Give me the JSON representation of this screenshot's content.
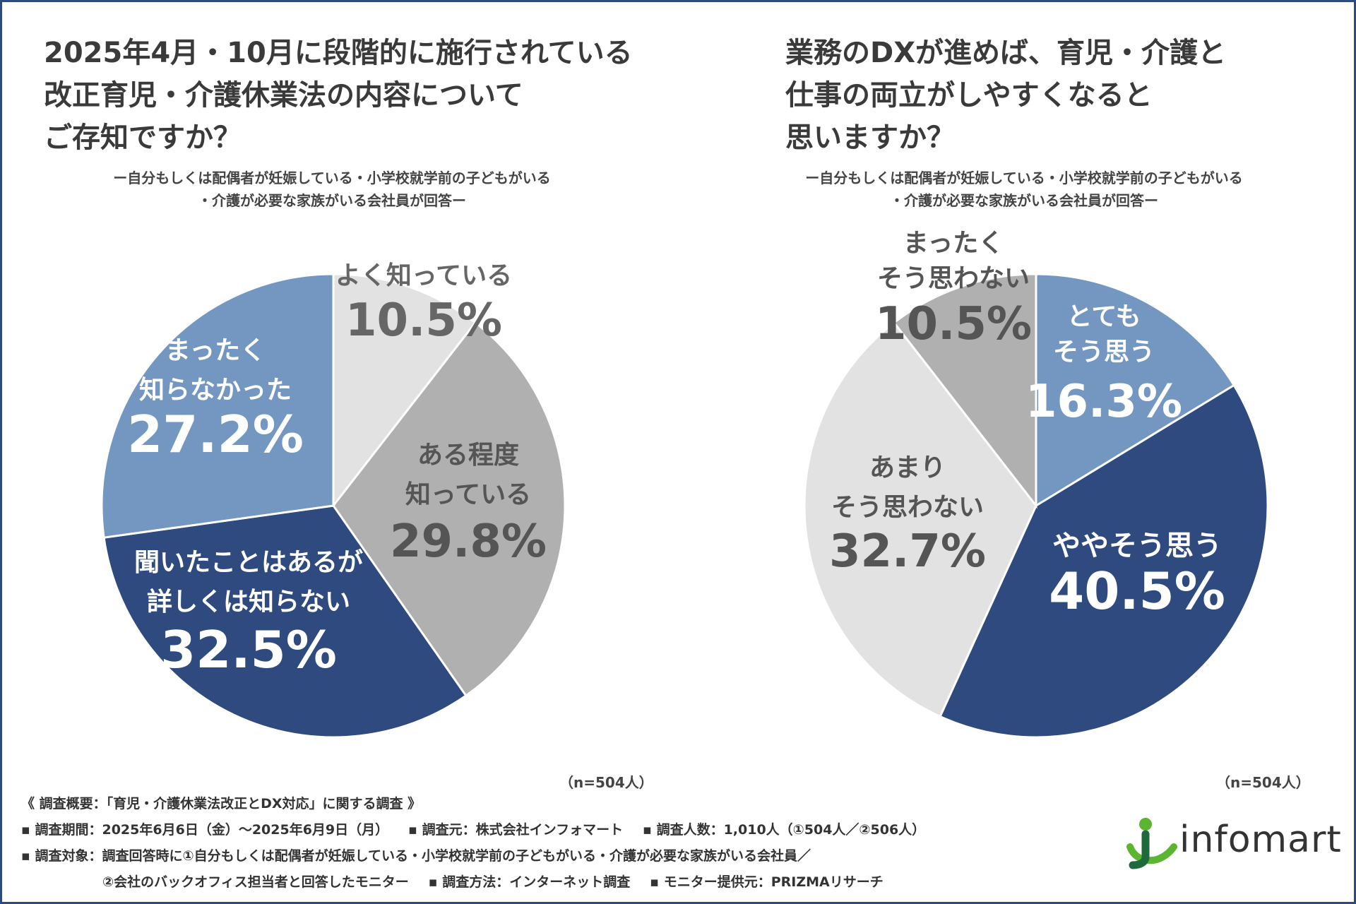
{
  "left": {
    "title_lines": [
      "2025年4月・10月に段階的に施行されている",
      "改正育児・介護休業法の内容について",
      "ご存知ですか？"
    ],
    "subtitle_lines": [
      "ー自分もしくは配偶者が妊娠している・小学校就学前の子どもがいる",
      "・介護が必要な家族がいる会社員が回答ー"
    ],
    "n_note": "（n=504人）"
  },
  "right": {
    "title_lines": [
      "業務のDXが進めば、育児・介護と",
      "仕事の両立がしやすくなると",
      "思いますか？"
    ],
    "subtitle_lines": [
      "ー自分もしくは配偶者が妊娠している・小学校就学前の子どもがいる",
      "・介護が必要な家族がいる会社員が回答ー"
    ],
    "n_note": "（n=504人）"
  },
  "chart_data": [
    {
      "type": "pie",
      "unit": "%",
      "slices": [
        {
          "label_lines": [
            "よく知っている"
          ],
          "value": 10.5,
          "value_text": "10.5%",
          "color": "#e2e2e2",
          "text_color": "#666666"
        },
        {
          "label_lines": [
            "ある程度",
            "知っている"
          ],
          "value": 29.8,
          "value_text": "29.8%",
          "color": "#b0b0b0",
          "text_color": "#555555"
        },
        {
          "label_lines": [
            "聞いたことはあるが",
            "詳しくは知らない"
          ],
          "value": 32.5,
          "value_text": "32.5%",
          "color": "#2e4a7f",
          "text_color": "#ffffff"
        },
        {
          "label_lines": [
            "まったく",
            "知らなかった"
          ],
          "value": 27.2,
          "value_text": "27.2%",
          "color": "#7397c0",
          "text_color": "#ffffff"
        }
      ]
    },
    {
      "type": "pie",
      "unit": "%",
      "slices": [
        {
          "label_lines": [
            "とても",
            "そう思う"
          ],
          "value": 16.3,
          "value_text": "16.3%",
          "color": "#7397c0",
          "text_color": "#ffffff"
        },
        {
          "label_lines": [
            "ややそう思う"
          ],
          "value": 40.5,
          "value_text": "40.5%",
          "color": "#2e4a7f",
          "text_color": "#ffffff"
        },
        {
          "label_lines": [
            "あまり",
            "そう思わない"
          ],
          "value": 32.7,
          "value_text": "32.7%",
          "color": "#e2e2e2",
          "text_color": "#555555"
        },
        {
          "label_lines": [
            "まったく",
            "そう思わない"
          ],
          "value": 10.5,
          "value_text": "10.5%",
          "color": "#b0b0b0",
          "text_color": "#555555"
        }
      ]
    }
  ],
  "footer": {
    "heading": "《 調査概要：「育児・介護休業法改正とDX対応」に関する調査 》",
    "period": "▪ 調査期間：2025年6月6日（金）～2025年6月9日（月）",
    "source": "▪ 調査元：株式会社インフォマート",
    "count": "▪ 調査人数：1,010人（①504人／②506人）",
    "target_line1": "▪ 調査対象：調査回答時に①自分もしくは配偶者が妊娠している・小学校就学前の子どもがいる・介護が必要な家族がいる会社員／",
    "target_line2": "②会社のバックオフィス担当者と回答したモニター",
    "method": "▪ 調査方法：インターネット調査",
    "provider": "▪ モニター提供元：PRIZMAリサーチ"
  },
  "logo": {
    "text": "infomart",
    "colors": {
      "green": "#5bb531",
      "dark": "#1f6a3c"
    }
  }
}
